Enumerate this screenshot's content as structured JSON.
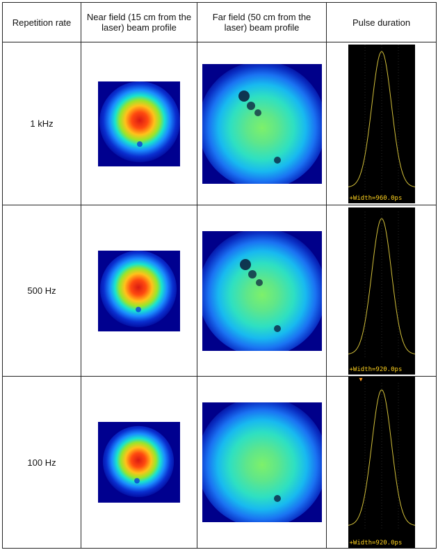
{
  "header": {
    "col1": "Repetition rate",
    "col2": "Near field (15 cm from the laser) beam profile",
    "col3": "Far field (50 cm from the laser) beam profile",
    "col4": "Pulse duration"
  },
  "rows": [
    {
      "rate": "1 kHz",
      "width_label": "+Width=960.0ps"
    },
    {
      "rate": "500 Hz",
      "width_label": "+Width=920.0ps"
    },
    {
      "rate": "100 Hz",
      "width_label": "+Width=920.0ps"
    }
  ],
  "colors": {
    "scope_trace": "#d4c13a",
    "scope_label": "#ffd21f",
    "scope_bg": "#000000"
  }
}
